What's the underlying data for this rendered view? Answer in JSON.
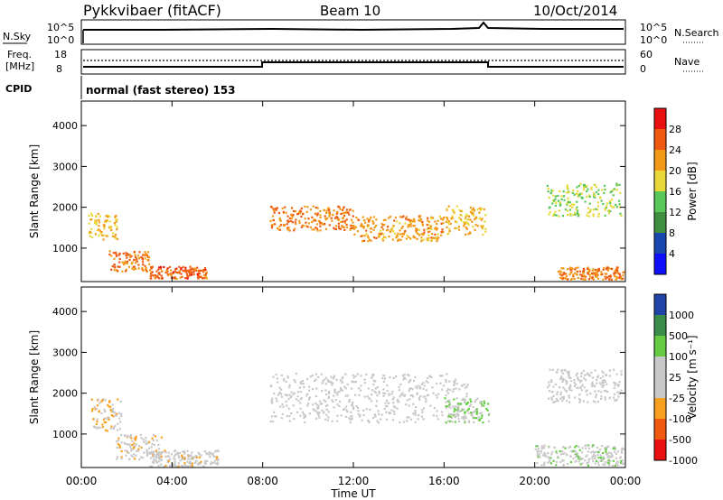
{
  "header": {
    "station": "Pykkvibaer (fitACF)",
    "beam": "Beam 10",
    "date": "10/Oct/2014"
  },
  "summary_panels": {
    "nsky_label": "N.Sky",
    "nsky_ticks": [
      "10^5",
      "10^0"
    ],
    "nsearch_label": "N.Search",
    "nsearch_ticks": [
      "10^5",
      "10^0"
    ],
    "freq_label_line1": "Freq.",
    "freq_label_line2": "[MHz]",
    "freq_ticks": [
      "18",
      "8"
    ],
    "nave_label": "Nave",
    "nave_ticks": [
      "60",
      "0"
    ],
    "cpid_label": "CPID",
    "cpid_text": "normal (fast stereo) 153"
  },
  "colors": {
    "power_scale": [
      "#1010ff",
      "#1a46b0",
      "#3f8f3f",
      "#58c85a",
      "#e8d838",
      "#f29a18",
      "#ef5a10",
      "#e81010"
    ],
    "velocity_scale": [
      "#e81010",
      "#f05a10",
      "#f7a020",
      "#c8c8c8",
      "#c8c8c8",
      "#66cc44",
      "#3a8c4a",
      "#1f44a8"
    ]
  },
  "chart_data": [
    {
      "type": "heatmap",
      "name": "power-panel",
      "xlabel": "",
      "ylabel": "Slant Range [km]",
      "xlim": [
        0,
        24
      ],
      "ylim": [
        180,
        4600
      ],
      "yticks": [
        "4000",
        "3000",
        "2000",
        "1000"
      ],
      "colorbar": {
        "label": "Power [dB]",
        "ticks": [
          "28",
          "24",
          "20",
          "16",
          "12",
          "8",
          "4"
        ]
      },
      "scatter_bands": [
        {
          "x_start": 0.3,
          "x_end": 1.6,
          "range_center": 1550,
          "width": 320,
          "value_db": 20
        },
        {
          "x_start": 1.2,
          "x_end": 3.0,
          "range_center": 700,
          "width": 250,
          "value_db": 24
        },
        {
          "x_start": 3.0,
          "x_end": 5.5,
          "range_center": 420,
          "width": 150,
          "value_db": 26
        },
        {
          "x_start": 8.3,
          "x_end": 12.0,
          "range_center": 1750,
          "width": 300,
          "value_db": 24
        },
        {
          "x_start": 12.0,
          "x_end": 16.0,
          "range_center": 1500,
          "width": 320,
          "value_db": 22
        },
        {
          "x_start": 16.0,
          "x_end": 17.8,
          "range_center": 1700,
          "width": 350,
          "value_db": 20
        },
        {
          "x_start": 20.5,
          "x_end": 23.8,
          "range_center": 2200,
          "width": 400,
          "value_db": 16
        },
        {
          "x_start": 21.0,
          "x_end": 23.9,
          "range_center": 400,
          "width": 150,
          "value_db": 24
        }
      ]
    },
    {
      "type": "heatmap",
      "name": "velocity-panel",
      "xlabel": "Time UT",
      "ylabel": "Slant Range [km]",
      "xlim": [
        0,
        24
      ],
      "ylim": [
        180,
        4600
      ],
      "xticks": [
        "00:00",
        "04:00",
        "08:00",
        "12:00",
        "16:00",
        "20:00",
        "00:00"
      ],
      "yticks": [
        "4000",
        "3000",
        "2000",
        "1000"
      ],
      "colorbar": {
        "label": "Velocity [m s⁻¹]",
        "ticks": [
          "1000",
          "500",
          "100",
          "25",
          "-25",
          "-100",
          "-500",
          "-1000"
        ]
      },
      "scatter_bands": [
        {
          "x_start": 0.4,
          "x_end": 1.8,
          "range_center": 1500,
          "width": 400,
          "value_ms": -300
        },
        {
          "x_start": 1.5,
          "x_end": 3.5,
          "range_center": 700,
          "width": 300,
          "value_ms": -200
        },
        {
          "x_start": 3.0,
          "x_end": 6.0,
          "range_center": 420,
          "width": 200,
          "value_ms": -150
        },
        {
          "x_start": 8.3,
          "x_end": 17.0,
          "range_center": 1900,
          "width": 600,
          "value_ms": 0
        },
        {
          "x_start": 16.0,
          "x_end": 18.0,
          "range_center": 1600,
          "width": 300,
          "value_ms": 300
        },
        {
          "x_start": 20.5,
          "x_end": 23.8,
          "range_center": 2200,
          "width": 400,
          "value_ms": 0
        },
        {
          "x_start": 20.0,
          "x_end": 23.9,
          "range_center": 500,
          "width": 250,
          "value_ms": 200
        }
      ]
    }
  ]
}
